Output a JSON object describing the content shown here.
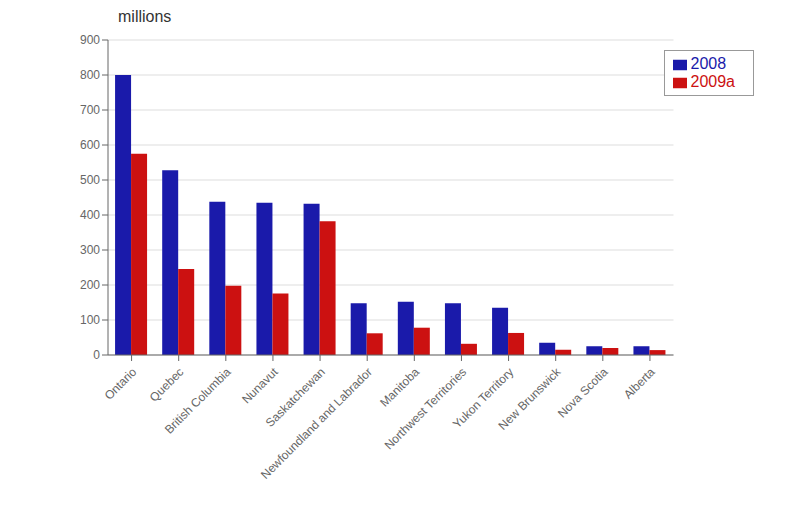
{
  "chart_data": {
    "type": "bar",
    "title": "millions",
    "categories": [
      "Ontario",
      "Quebec",
      "British Columbia",
      "Nunavut",
      "Saskatchewan",
      "Newfoundland and Labrador",
      "Manitoba",
      "Northwest Territories",
      "Yukon Territory",
      "New Brunswick",
      "Nova Scotia",
      "Alberta"
    ],
    "series": [
      {
        "name": "2008",
        "color": "#1a1aaa",
        "values": [
          800,
          528,
          438,
          435,
          432,
          148,
          152,
          148,
          135,
          35,
          25,
          25
        ]
      },
      {
        "name": "2009a",
        "color": "#cc1111",
        "values": [
          575,
          246,
          198,
          176,
          382,
          62,
          78,
          32,
          63,
          15,
          20,
          14
        ]
      }
    ],
    "ylim": [
      0,
      900
    ],
    "yticks": [
      0,
      100,
      200,
      300,
      400,
      500,
      600,
      700,
      800,
      900
    ],
    "grid": true,
    "legend": "upper right"
  }
}
